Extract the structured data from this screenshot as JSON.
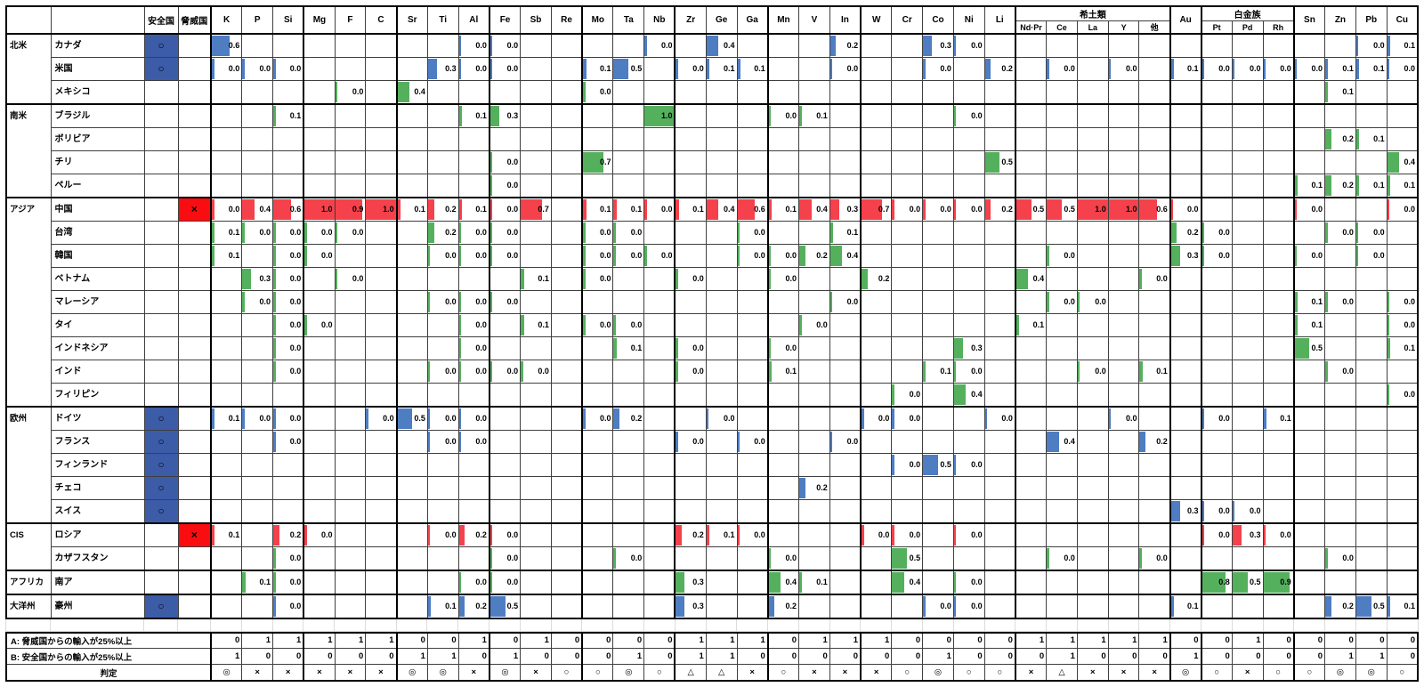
{
  "header": {
    "safe_label": "安全国",
    "threat_label": "脅威国",
    "group_labels": {
      "rare": "希土類",
      "plat": "白金族"
    },
    "safe_mark": "○",
    "threat_mark": "×"
  },
  "columns": [
    {
      "key": "K",
      "label": "K"
    },
    {
      "key": "P",
      "label": "P"
    },
    {
      "key": "Si",
      "label": "Si"
    },
    {
      "key": "Mg",
      "label": "Mg"
    },
    {
      "key": "F",
      "label": "F"
    },
    {
      "key": "C",
      "label": "C"
    },
    {
      "key": "Sr",
      "label": "Sr"
    },
    {
      "key": "Ti",
      "label": "Ti"
    },
    {
      "key": "Al",
      "label": "Al"
    },
    {
      "key": "Fe",
      "label": "Fe"
    },
    {
      "key": "Sb",
      "label": "Sb"
    },
    {
      "key": "Re",
      "label": "Re"
    },
    {
      "key": "Mo",
      "label": "Mo"
    },
    {
      "key": "Ta",
      "label": "Ta"
    },
    {
      "key": "Nb",
      "label": "Nb"
    },
    {
      "key": "Zr",
      "label": "Zr"
    },
    {
      "key": "Ge",
      "label": "Ge"
    },
    {
      "key": "Ga",
      "label": "Ga"
    },
    {
      "key": "Mn",
      "label": "Mn"
    },
    {
      "key": "V",
      "label": "V"
    },
    {
      "key": "In",
      "label": "In"
    },
    {
      "key": "W",
      "label": "W"
    },
    {
      "key": "Cr",
      "label": "Cr"
    },
    {
      "key": "Co",
      "label": "Co"
    },
    {
      "key": "Ni",
      "label": "Ni"
    },
    {
      "key": "Li",
      "label": "Li"
    },
    {
      "key": "NdPr",
      "label": "Nd·Pr",
      "group": "rare"
    },
    {
      "key": "Ce",
      "label": "Ce",
      "group": "rare"
    },
    {
      "key": "La",
      "label": "La",
      "group": "rare"
    },
    {
      "key": "Y",
      "label": "Y",
      "group": "rare"
    },
    {
      "key": "Other",
      "label": "他",
      "group": "rare"
    },
    {
      "key": "Au",
      "label": "Au"
    },
    {
      "key": "Pt",
      "label": "Pt",
      "group": "plat"
    },
    {
      "key": "Pd",
      "label": "Pd",
      "group": "plat"
    },
    {
      "key": "Rh",
      "label": "Rh",
      "group": "plat"
    },
    {
      "key": "Sn",
      "label": "Sn"
    },
    {
      "key": "Zn",
      "label": "Zn"
    },
    {
      "key": "Pb",
      "label": "Pb"
    },
    {
      "key": "Cu",
      "label": "Cu"
    }
  ],
  "thick_after": [
    "Si",
    "C",
    "Al",
    "Re",
    "Nb",
    "Ga",
    "In",
    "Li",
    "Other",
    "Au",
    "Rh"
  ],
  "regions": [
    {
      "name": "北米",
      "rows": [
        {
          "country": "カナダ",
          "status": "safe",
          "values": {
            "K": "0.6",
            "Al": "0.0",
            "Fe": "0.0",
            "Nb": "0.0",
            "Ge": "0.4",
            "In": "0.2",
            "Co": "0.3",
            "Ni": "0.0",
            "Pb": "0.0",
            "Cu": "0.1"
          }
        },
        {
          "country": "米国",
          "status": "safe",
          "values": {
            "K": "0.0",
            "P": "0.0",
            "Si": "0.0",
            "Ti": "0.3",
            "Al": "0.0",
            "Fe": "0.0",
            "Mo": "0.1",
            "Ta": "0.5",
            "Zr": "0.0",
            "Ge": "0.1",
            "Ga": "0.1",
            "In": "0.0",
            "Co": "0.0",
            "Li": "0.2",
            "Ce": "0.0",
            "Y": "0.0",
            "Au": "0.1",
            "Pt": "0.0",
            "Pd": "0.0",
            "Rh": "0.0",
            "Sn": "0.0",
            "Zn": "0.1",
            "Pb": "0.1",
            "Cu": "0.0"
          }
        },
        {
          "country": "メキシコ",
          "status": "",
          "values": {
            "F": "0.0",
            "Sr": "0.4",
            "Mo": "0.0",
            "Zn": "0.1"
          }
        }
      ]
    },
    {
      "name": "南米",
      "rows": [
        {
          "country": "ブラジル",
          "status": "",
          "values": {
            "Si": "0.1",
            "Al": "0.1",
            "Fe": "0.3",
            "Nb": "1.0",
            "Mn": "0.0",
            "V": "0.1",
            "Ni": "0.0"
          }
        },
        {
          "country": "ボリビア",
          "status": "",
          "values": {
            "Zn": "0.2",
            "Pb": "0.1"
          }
        },
        {
          "country": "チリ",
          "status": "",
          "values": {
            "Fe": "0.0",
            "Mo": "0.7",
            "Li": "0.5",
            "Cu": "0.4"
          }
        },
        {
          "country": "ペルー",
          "status": "",
          "values": {
            "Fe": "0.0",
            "Sn": "0.1",
            "Zn": "0.2",
            "Pb": "0.1",
            "Cu": "0.1"
          }
        }
      ]
    },
    {
      "name": "アジア",
      "rows": [
        {
          "country": "中国",
          "status": "threat",
          "values": {
            "K": "0.0",
            "P": "0.4",
            "Si": "0.6",
            "Mg": "1.0",
            "F": "0.9",
            "C": "1.0",
            "Sr": "0.1",
            "Ti": "0.2",
            "Al": "0.1",
            "Fe": "0.0",
            "Sb": "0.7",
            "Mo": "0.1",
            "Ta": "0.1",
            "Nb": "0.0",
            "Zr": "0.1",
            "Ge": "0.4",
            "Ga": "0.6",
            "Mn": "0.1",
            "V": "0.4",
            "In": "0.3",
            "W": "0.7",
            "Cr": "0.0",
            "Co": "0.0",
            "Ni": "0.0",
            "Li": "0.2",
            "NdPr": "0.5",
            "Ce": "0.5",
            "La": "1.0",
            "Y": "1.0",
            "Other": "0.6",
            "Au": "0.0",
            "Sn": "0.0",
            "Cu": "0.0"
          }
        },
        {
          "country": "台湾",
          "status": "",
          "values": {
            "K": "0.1",
            "P": "0.0",
            "Si": "0.0",
            "Mg": "0.0",
            "F": "0.0",
            "Ti": "0.2",
            "Al": "0.0",
            "Fe": "0.0",
            "Mo": "0.0",
            "Ta": "0.0",
            "Ga": "0.0",
            "In": "0.1",
            "Au": "0.2",
            "Pt": "0.0",
            "Zn": "0.0",
            "Pb": "0.0"
          }
        },
        {
          "country": "韓国",
          "status": "",
          "values": {
            "K": "0.1",
            "Si": "0.0",
            "Mg": "0.0",
            "Ti": "0.0",
            "Al": "0.0",
            "Fe": "0.0",
            "Mo": "0.0",
            "Ta": "0.0",
            "Nb": "0.0",
            "Ga": "0.0",
            "Mn": "0.0",
            "V": "0.2",
            "In": "0.4",
            "Ce": "0.0",
            "Au": "0.3",
            "Pt": "0.0",
            "Sn": "0.0",
            "Pb": "0.0"
          }
        },
        {
          "country": "ベトナム",
          "status": "",
          "values": {
            "P": "0.3",
            "Si": "0.0",
            "F": "0.0",
            "Sb": "0.1",
            "Mo": "0.0",
            "Zr": "0.0",
            "Mn": "0.0",
            "W": "0.2",
            "NdPr": "0.4",
            "Other": "0.0"
          }
        },
        {
          "country": "マレーシア",
          "status": "",
          "values": {
            "P": "0.0",
            "Si": "0.0",
            "Ti": "0.0",
            "Al": "0.0",
            "Fe": "0.0",
            "In": "0.0",
            "Ce": "0.0",
            "La": "0.0",
            "Sn": "0.1",
            "Zn": "0.0",
            "Cu": "0.0"
          }
        },
        {
          "country": "タイ",
          "status": "",
          "values": {
            "Si": "0.0",
            "Mg": "0.0",
            "Al": "0.0",
            "Sb": "0.1",
            "Mo": "0.0",
            "Ta": "0.0",
            "V": "0.0",
            "NdPr": "0.1",
            "Sn": "0.1",
            "Cu": "0.0"
          }
        },
        {
          "country": "インドネシア",
          "status": "",
          "values": {
            "Si": "0.0",
            "Al": "0.0",
            "Ta": "0.1",
            "Zr": "0.0",
            "Mn": "0.0",
            "Ni": "0.3",
            "Sn": "0.5",
            "Cu": "0.1"
          }
        },
        {
          "country": "インド",
          "status": "",
          "values": {
            "Si": "0.0",
            "Ti": "0.0",
            "Al": "0.0",
            "Fe": "0.0",
            "Sb": "0.0",
            "Zr": "0.0",
            "Mn": "0.1",
            "Co": "0.1",
            "Ni": "0.0",
            "La": "0.0",
            "Other": "0.1",
            "Zn": "0.0"
          }
        },
        {
          "country": "フィリピン",
          "status": "",
          "values": {
            "Cr": "0.0",
            "Ni": "0.4",
            "Cu": "0.0"
          }
        }
      ]
    },
    {
      "name": "欧州",
      "rows": [
        {
          "country": "ドイツ",
          "status": "safe",
          "values": {
            "K": "0.1",
            "P": "0.0",
            "Si": "0.0",
            "C": "0.0",
            "Sr": "0.5",
            "Ti": "0.0",
            "Al": "0.0",
            "Mo": "0.0",
            "Ta": "0.2",
            "Ge": "0.0",
            "W": "0.0",
            "Cr": "0.0",
            "Li": "0.0",
            "Y": "0.0",
            "Pt": "0.0",
            "Rh": "0.1"
          }
        },
        {
          "country": "フランス",
          "status": "safe",
          "values": {
            "Si": "0.0",
            "Ti": "0.0",
            "Al": "0.0",
            "Zr": "0.0",
            "Ga": "0.0",
            "In": "0.0",
            "Ce": "0.4",
            "Other": "0.2"
          }
        },
        {
          "country": "フィンランド",
          "status": "safe",
          "values": {
            "Cr": "0.0",
            "Co": "0.5",
            "Ni": "0.0"
          }
        },
        {
          "country": "チェコ",
          "status": "safe",
          "values": {
            "V": "0.2"
          }
        },
        {
          "country": "スイス",
          "status": "safe",
          "values": {
            "Au": "0.3",
            "Pt": "0.0",
            "Pd": "0.0"
          }
        }
      ]
    },
    {
      "name": "CIS",
      "rows": [
        {
          "country": "ロシア",
          "status": "threat",
          "values": {
            "K": "0.1",
            "Si": "0.2",
            "Mg": "0.0",
            "Ti": "0.0",
            "Al": "0.2",
            "Fe": "0.0",
            "Zr": "0.2",
            "Ge": "0.1",
            "Ga": "0.0",
            "W": "0.0",
            "Cr": "0.0",
            "Ni": "0.0",
            "Pt": "0.0",
            "Pd": "0.3",
            "Rh": "0.0"
          }
        },
        {
          "country": "カザフスタン",
          "status": "",
          "values": {
            "Si": "0.0",
            "Fe": "0.0",
            "Ta": "0.0",
            "Mn": "0.0",
            "Cr": "0.5",
            "Ce": "0.0",
            "Other": "0.0",
            "Zn": "0.0"
          }
        }
      ]
    },
    {
      "name": "アフリカ",
      "rows": [
        {
          "country": "南ア",
          "status": "",
          "values": {
            "P": "0.1",
            "Si": "0.0",
            "Al": "0.0",
            "Fe": "0.0",
            "Zr": "0.3",
            "Mn": "0.4",
            "V": "0.1",
            "Cr": "0.4",
            "Ni": "0.0",
            "Pt": "0.8",
            "Pd": "0.5",
            "Rh": "0.9"
          }
        }
      ]
    },
    {
      "name": "大洋州",
      "rows": [
        {
          "country": "豪州",
          "status": "safe",
          "values": {
            "Si": "0.0",
            "Ti": "0.1",
            "Al": "0.2",
            "Fe": "0.5",
            "Zr": "0.3",
            "Mn": "0.2",
            "Co": "0.0",
            "Ni": "0.0",
            "Au": "0.1",
            "Zn": "0.2",
            "Pb": "0.5",
            "Cu": "0.1"
          }
        }
      ]
    }
  ],
  "summary": {
    "a_label": "A: 脅威国からの輸入が25%以上",
    "b_label": "B: 安全国からの輸入が25%以上",
    "judge_label": "判定",
    "a": [
      0,
      1,
      1,
      1,
      1,
      1,
      0,
      0,
      1,
      0,
      1,
      0,
      0,
      0,
      0,
      1,
      1,
      1,
      0,
      1,
      1,
      1,
      0,
      0,
      0,
      0,
      1,
      1,
      1,
      1,
      1,
      0,
      0,
      1,
      0,
      0,
      0,
      0,
      0
    ],
    "b": [
      1,
      0,
      0,
      0,
      0,
      0,
      1,
      1,
      0,
      1,
      0,
      0,
      0,
      1,
      0,
      1,
      1,
      0,
      0,
      0,
      0,
      0,
      0,
      1,
      0,
      0,
      0,
      1,
      0,
      0,
      0,
      1,
      0,
      0,
      0,
      0,
      1,
      1,
      0
    ],
    "judgement": [
      "◎",
      "×",
      "×",
      "×",
      "×",
      "×",
      "◎",
      "◎",
      "×",
      "◎",
      "×",
      "○",
      "○",
      "◎",
      "○",
      "△",
      "△",
      "×",
      "○",
      "×",
      "×",
      "×",
      "○",
      "◎",
      "○",
      "○",
      "×",
      "△",
      "×",
      "×",
      "×",
      "◎",
      "○",
      "×",
      "○",
      "○",
      "◎",
      "◎",
      "○"
    ]
  },
  "colors": {
    "safe_cell": "#3d5ca8",
    "threat_cell": "#f90d10",
    "bar_blue": "#4e7dc2",
    "bar_green": "#55b05e",
    "bar_red": "#f5414b"
  }
}
